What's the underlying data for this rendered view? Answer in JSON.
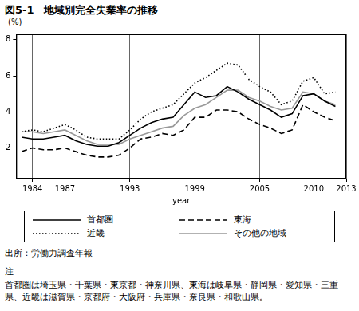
{
  "chart_data": {
    "type": "line",
    "title": "図5-1　地域別完全失業率の推移",
    "ylabel": "(%)",
    "xlabel": "year",
    "x": [
      1983,
      1984,
      1985,
      1986,
      1987,
      1988,
      1989,
      1990,
      1991,
      1992,
      1993,
      1994,
      1995,
      1996,
      1997,
      1998,
      1999,
      2000,
      2001,
      2002,
      2003,
      2004,
      2005,
      2006,
      2007,
      2008,
      2009,
      2010,
      2011,
      2012
    ],
    "series": [
      {
        "name": "首都圏",
        "color": "#000000",
        "line_style": "solid",
        "values": [
          2.6,
          2.5,
          2.5,
          2.6,
          2.7,
          2.4,
          2.2,
          2.1,
          2.1,
          2.3,
          2.7,
          3.1,
          3.4,
          3.6,
          3.7,
          4.4,
          5.1,
          4.8,
          4.9,
          5.4,
          5.1,
          4.7,
          4.4,
          4.1,
          3.7,
          3.9,
          4.9,
          5.0,
          4.6,
          4.3
        ]
      },
      {
        "name": "東海",
        "color": "#000000",
        "line_style": "dashed",
        "values": [
          1.8,
          2.0,
          1.9,
          1.9,
          2.0,
          1.8,
          1.6,
          1.5,
          1.5,
          1.6,
          2.0,
          2.5,
          2.6,
          2.8,
          2.7,
          3.0,
          3.7,
          3.7,
          4.1,
          4.1,
          4.0,
          3.6,
          3.3,
          3.1,
          2.8,
          3.0,
          4.4,
          4.0,
          3.7,
          3.5
        ]
      },
      {
        "name": "近畿",
        "color": "#000000",
        "line_style": "dotted",
        "values": [
          2.9,
          3.0,
          2.9,
          3.1,
          3.3,
          3.0,
          2.6,
          2.5,
          2.5,
          2.5,
          3.0,
          3.6,
          4.0,
          4.2,
          4.4,
          5.0,
          5.6,
          5.9,
          6.3,
          6.7,
          6.6,
          5.8,
          5.4,
          5.1,
          4.4,
          4.6,
          5.7,
          5.9,
          5.0,
          5.1
        ]
      },
      {
        "name": "その他の地域",
        "color": "#999999",
        "line_style": "solid",
        "values": [
          2.9,
          2.9,
          2.8,
          2.9,
          3.0,
          2.7,
          2.4,
          2.2,
          2.2,
          2.2,
          2.5,
          2.7,
          2.9,
          3.1,
          3.2,
          3.8,
          4.2,
          4.4,
          4.8,
          5.2,
          5.2,
          4.8,
          4.6,
          4.3,
          4.1,
          4.2,
          5.1,
          5.0,
          4.6,
          4.4
        ]
      }
    ],
    "xlim": [
      1982.5,
      2013
    ],
    "xticks": [
      1984,
      1987,
      1993,
      1999,
      2005,
      2010,
      2013
    ],
    "ylim": [
      0.3,
      8.3
    ],
    "yticks": [
      2,
      4,
      6,
      8
    ],
    "grid": true,
    "legend": "bottom"
  },
  "source": "出所：労働力調査年報",
  "notes": {
    "heading": "注",
    "text": "首都圏は埼玉県・千葉県・東京都・神奈川県、東海は岐阜県・静岡県・愛知県・三重県、近畿は滋賀県・京都府・大阪府・兵庫県・奈良県・和歌山県。"
  }
}
